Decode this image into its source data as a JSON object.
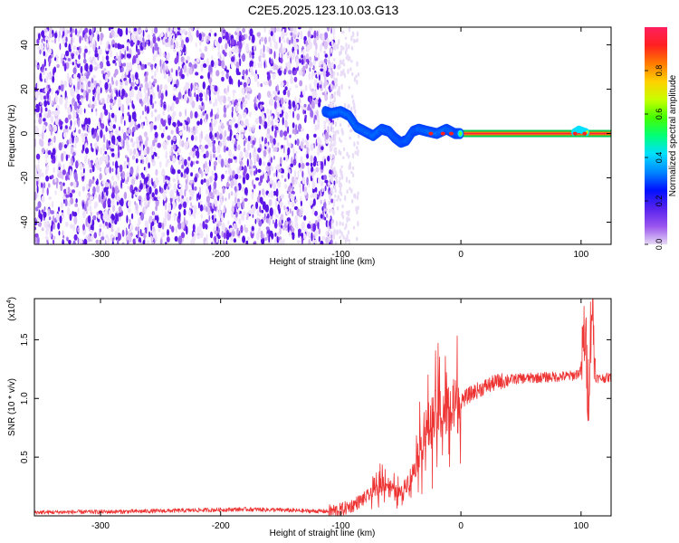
{
  "title": "C2E5.2025.123.10.03.G13",
  "chart_data": [
    {
      "type": "heatmap",
      "xlabel": "Height of straight line (km)",
      "ylabel": "Frequency (Hz)",
      "xlim": [
        -355,
        125
      ],
      "ylim": [
        -50,
        48
      ],
      "xticks": [
        -300,
        -200,
        -100,
        0,
        100
      ],
      "xtick_labels": [
        "-300",
        "-200",
        "-100",
        "0",
        "100"
      ],
      "yticks": [
        -40,
        -20,
        0,
        20,
        40
      ],
      "ytick_labels": [
        "-40",
        "-20",
        "0",
        "20",
        "40"
      ],
      "colorbar": {
        "label": "Normalized spectral amplitude",
        "range": [
          0,
          1
        ],
        "ticks": [
          0.0,
          0.2,
          0.4,
          0.6,
          0.8
        ],
        "tick_labels": [
          "0.0",
          "0.2",
          "0.4",
          "0.6",
          "0.8"
        ],
        "colormap": [
          "#e6d8f4",
          "#9a55ee",
          "#5522ee",
          "#0011ff",
          "#0088ff",
          "#00e0ff",
          "#00ff77",
          "#44ff00",
          "#c8ff00",
          "#ffd000",
          "#ff7a00",
          "#ff2020",
          "#ff2060"
        ]
      },
      "ridge": {
        "x": [
          -113,
          -108,
          -100,
          -93,
          -87,
          -80,
          -73,
          -66,
          -60,
          -55,
          -50,
          -45,
          -40,
          -35,
          -28,
          -20,
          -12,
          -5,
          0,
          20,
          40,
          60,
          80,
          92,
          98,
          103,
          108,
          125
        ],
        "y": [
          10,
          9,
          10,
          8,
          3,
          1,
          -1,
          2,
          1,
          -2,
          -4,
          -3,
          1,
          2,
          1,
          0,
          2,
          0,
          0,
          0,
          0,
          0,
          0,
          0,
          2,
          1,
          0,
          0
        ]
      },
      "grid": false
    },
    {
      "type": "line",
      "xlabel": "Height of straight line (km)",
      "ylabel": "SNR (10 * v/v)",
      "multiplier_label": "(x10",
      "multiplier_exponent": "4",
      "multiplier_close": ")",
      "xlim": [
        -355,
        125
      ],
      "ylim": [
        0,
        18500
      ],
      "xticks": [
        -300,
        -200,
        -100,
        0,
        100
      ],
      "xtick_labels": [
        "-300",
        "-200",
        "-100",
        "0",
        "100"
      ],
      "yticks": [
        5000,
        10000,
        15000
      ],
      "ytick_labels": [
        "0.5",
        "1.0",
        "1.5"
      ],
      "series": [
        {
          "color": "#ee3333",
          "x": [
            -355,
            -330,
            -300,
            -270,
            -250,
            -230,
            -200,
            -180,
            -150,
            -130,
            -110,
            -100,
            -90,
            -80,
            -70,
            -65,
            -60,
            -55,
            -50,
            -45,
            -40,
            -35,
            -30,
            -25,
            -20,
            -15,
            -10,
            -5,
            0,
            10,
            20,
            30,
            40,
            50,
            60,
            70,
            80,
            90,
            95,
            100,
            103,
            106,
            109,
            112,
            115,
            120,
            125
          ],
          "y": [
            300,
            320,
            340,
            380,
            420,
            460,
            520,
            560,
            500,
            420,
            380,
            500,
            900,
            1500,
            2200,
            3000,
            2600,
            2100,
            1900,
            2800,
            3600,
            5500,
            7000,
            8000,
            8600,
            8800,
            9000,
            9300,
            9800,
            10500,
            11000,
            11400,
            11600,
            11700,
            11750,
            11800,
            11850,
            11900,
            12000,
            12300,
            16000,
            10500,
            18500,
            11800,
            11700,
            11750,
            11800
          ]
        }
      ],
      "grid": false
    }
  ]
}
